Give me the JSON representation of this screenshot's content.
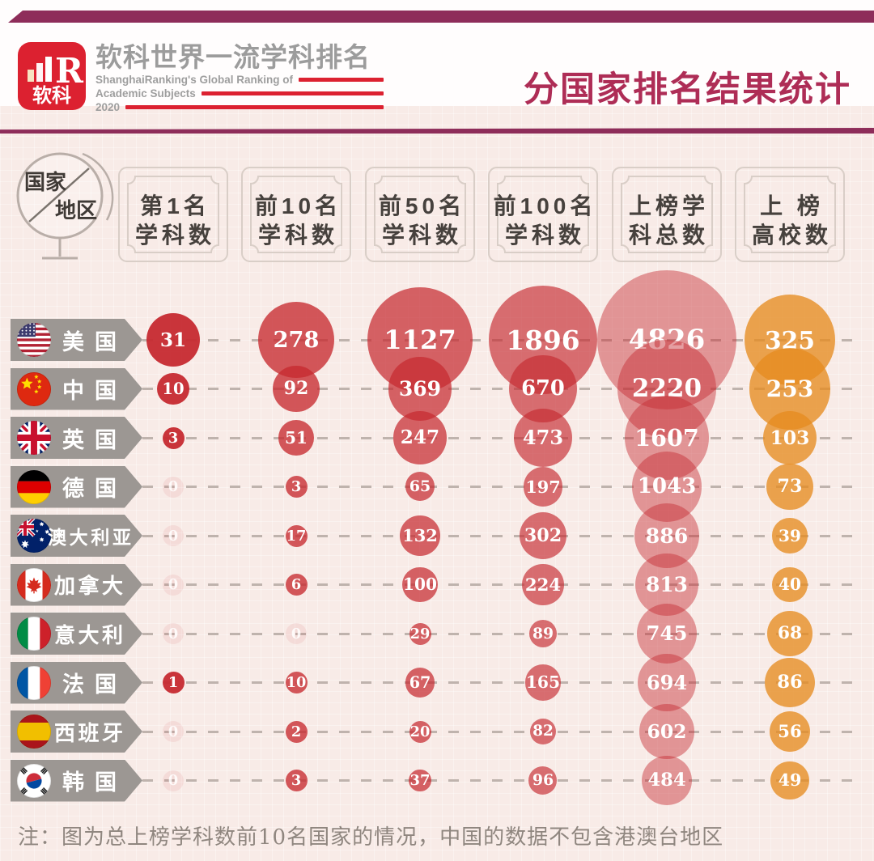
{
  "header": {
    "logo_badge": {
      "brand": "软科",
      "mark": "R"
    },
    "brand_title": "软科世界一流学科排名",
    "brand_sub1": "ShanghaiRanking's Global Ranking of",
    "brand_sub2": "Academic Subjects",
    "brand_year": "2020",
    "page_title": "分国家排名结果统计"
  },
  "corner_label": {
    "line1": "国家",
    "line2": "地区"
  },
  "note": "注：图为总上榜学科数前10名国家的情况，中国的数据不包含港澳台地区",
  "colors": {
    "background": "#f8ebe7",
    "accent_maroon": "#8e2d5a",
    "title_red": "#ae2d56",
    "logo_red": "#dc2130",
    "banner_gray": "#9c9793",
    "box_border": "#d9cec7",
    "box_text": "#46413d",
    "dash_line": "#bfb3ad",
    "bubble_red_rgb": "198,42,48",
    "bubble_orange_rgb": "230,140,32",
    "note_text": "#8f867f",
    "column_alphas": [
      0.95,
      0.78,
      0.72,
      0.66,
      0.45,
      0.78
    ]
  },
  "chart_data": {
    "type": "table",
    "variant": "bubble-matrix",
    "title": "分国家排名结果统计",
    "legend_position": "none",
    "grid": "dashed-row-lines",
    "columns_two_line": [
      [
        "第1名",
        "学科数"
      ],
      [
        "前10名",
        "学科数"
      ],
      [
        "前50名",
        "学科数"
      ],
      [
        "前100名",
        "学科数"
      ],
      [
        "上榜学",
        "科总数"
      ],
      [
        "上 榜",
        "高校数"
      ]
    ],
    "columns_flat": [
      "第1名学科数",
      "前10名学科数",
      "前50名学科数",
      "前100名学科数",
      "上榜学科总数",
      "上榜高校数"
    ],
    "rows": [
      {
        "country": "美国",
        "flag": "us",
        "values": [
          31,
          278,
          1127,
          1896,
          4826,
          325
        ]
      },
      {
        "country": "中国",
        "flag": "cn",
        "values": [
          10,
          92,
          369,
          670,
          2220,
          253
        ]
      },
      {
        "country": "英国",
        "flag": "gb",
        "values": [
          3,
          51,
          247,
          473,
          1607,
          103
        ]
      },
      {
        "country": "德国",
        "flag": "de",
        "values": [
          0,
          3,
          65,
          197,
          1043,
          73
        ]
      },
      {
        "country": "澳大利亚",
        "flag": "au",
        "values": [
          0,
          17,
          132,
          302,
          886,
          39
        ]
      },
      {
        "country": "加拿大",
        "flag": "ca",
        "values": [
          0,
          6,
          100,
          224,
          813,
          40
        ]
      },
      {
        "country": "意大利",
        "flag": "it",
        "values": [
          0,
          0,
          29,
          89,
          745,
          68
        ]
      },
      {
        "country": "法国",
        "flag": "fr",
        "values": [
          1,
          10,
          67,
          165,
          694,
          86
        ]
      },
      {
        "country": "西班牙",
        "flag": "es",
        "values": [
          0,
          2,
          20,
          82,
          602,
          56
        ]
      },
      {
        "country": "韩国",
        "flag": "kr",
        "values": [
          0,
          3,
          37,
          96,
          484,
          49
        ]
      }
    ]
  }
}
